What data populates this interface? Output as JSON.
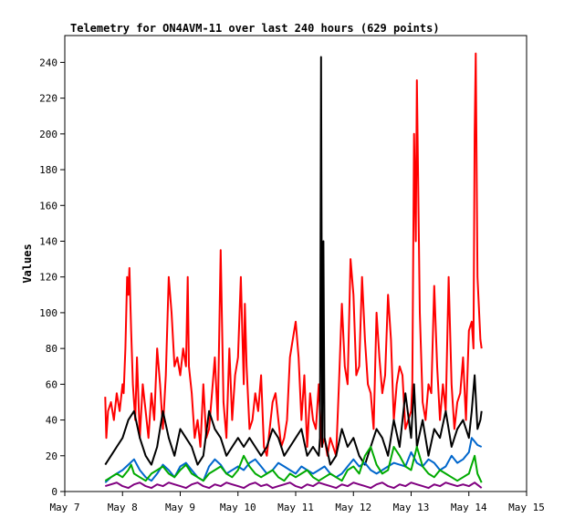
{
  "chart_data": {
    "type": "line",
    "title": "Telemetry for ON4AVM-11 over last 240 hours (629 points)",
    "xlabel": "",
    "ylabel": "Values",
    "x_unit": "day of May",
    "xlim": [
      7,
      15
    ],
    "ylim": [
      0,
      255
    ],
    "x_ticks": [
      {
        "x": 7,
        "label": "May 7"
      },
      {
        "x": 8,
        "label": "May 8"
      },
      {
        "x": 9,
        "label": "May 9"
      },
      {
        "x": 10,
        "label": "May 10"
      },
      {
        "x": 11,
        "label": "May 11"
      },
      {
        "x": 12,
        "label": "May 12"
      },
      {
        "x": 13,
        "label": "May 13"
      },
      {
        "x": 14,
        "label": "May 14"
      },
      {
        "x": 15,
        "label": "May 15"
      }
    ],
    "y_ticks": [
      0,
      20,
      40,
      60,
      80,
      100,
      120,
      140,
      160,
      180,
      200,
      220,
      240
    ],
    "grid": false,
    "legend": "none",
    "series": [
      {
        "color": "#ff0000",
        "x": [
          7.7,
          7.72,
          7.75,
          7.8,
          7.85,
          7.9,
          7.95,
          8.0,
          8.02,
          8.05,
          8.08,
          8.1,
          8.12,
          8.15,
          8.18,
          8.22,
          8.25,
          8.3,
          8.35,
          8.4,
          8.45,
          8.5,
          8.55,
          8.6,
          8.65,
          8.7,
          8.75,
          8.8,
          8.85,
          8.9,
          8.95,
          9.0,
          9.05,
          9.1,
          9.13,
          9.15,
          9.2,
          9.25,
          9.3,
          9.35,
          9.4,
          9.45,
          9.5,
          9.55,
          9.6,
          9.65,
          9.7,
          9.75,
          9.8,
          9.85,
          9.9,
          9.95,
          10.0,
          10.05,
          10.1,
          10.12,
          10.15,
          10.2,
          10.25,
          10.3,
          10.35,
          10.4,
          10.45,
          10.5,
          10.55,
          10.6,
          10.65,
          10.7,
          10.75,
          10.8,
          10.85,
          10.9,
          10.95,
          11.0,
          11.05,
          11.1,
          11.15,
          11.2,
          11.25,
          11.3,
          11.35,
          11.4,
          11.45,
          11.5,
          11.55,
          11.6,
          11.65,
          11.7,
          11.75,
          11.8,
          11.85,
          11.9,
          11.95,
          12.0,
          12.05,
          12.1,
          12.15,
          12.2,
          12.25,
          12.3,
          12.35,
          12.4,
          12.45,
          12.5,
          12.55,
          12.6,
          12.65,
          12.7,
          12.75,
          12.8,
          12.85,
          12.9,
          12.95,
          13.0,
          13.02,
          13.05,
          13.08,
          13.1,
          13.15,
          13.2,
          13.25,
          13.3,
          13.35,
          13.4,
          13.45,
          13.5,
          13.55,
          13.6,
          13.65,
          13.7,
          13.75,
          13.8,
          13.85,
          13.9,
          13.95,
          14.0,
          14.05,
          14.08,
          14.1,
          14.12,
          14.15,
          14.2,
          14.22
        ],
        "values": [
          53,
          30,
          45,
          50,
          40,
          55,
          45,
          60,
          55,
          80,
          120,
          110,
          125,
          90,
          60,
          40,
          75,
          30,
          60,
          45,
          30,
          55,
          40,
          80,
          60,
          35,
          65,
          120,
          100,
          70,
          75,
          65,
          80,
          70,
          120,
          70,
          55,
          30,
          40,
          25,
          60,
          30,
          35,
          55,
          75,
          40,
          135,
          50,
          30,
          80,
          40,
          65,
          75,
          120,
          60,
          105,
          70,
          35,
          40,
          55,
          45,
          65,
          25,
          20,
          35,
          50,
          55,
          40,
          25,
          30,
          40,
          75,
          85,
          95,
          75,
          40,
          65,
          25,
          55,
          40,
          35,
          60,
          25,
          30,
          20,
          30,
          25,
          20,
          60,
          105,
          70,
          60,
          130,
          110,
          65,
          70,
          120,
          85,
          60,
          55,
          35,
          100,
          75,
          55,
          65,
          110,
          85,
          40,
          60,
          70,
          65,
          35,
          40,
          45,
          60,
          200,
          140,
          230,
          100,
          50,
          40,
          60,
          55,
          115,
          70,
          40,
          60,
          45,
          120,
          60,
          35,
          50,
          55,
          75,
          40,
          90,
          95,
          80,
          200,
          245,
          120,
          85,
          80
        ]
      },
      {
        "color": "#000000",
        "x": [
          7.7,
          7.8,
          7.9,
          8.0,
          8.1,
          8.2,
          8.3,
          8.4,
          8.5,
          8.6,
          8.7,
          8.8,
          8.9,
          9.0,
          9.1,
          9.2,
          9.3,
          9.4,
          9.5,
          9.6,
          9.7,
          9.8,
          9.9,
          10.0,
          10.1,
          10.2,
          10.3,
          10.4,
          10.5,
          10.6,
          10.7,
          10.8,
          10.9,
          11.0,
          11.1,
          11.2,
          11.3,
          11.4,
          11.42,
          11.44,
          11.46,
          11.48,
          11.5,
          11.6,
          11.7,
          11.8,
          11.9,
          12.0,
          12.1,
          12.2,
          12.3,
          12.4,
          12.5,
          12.6,
          12.7,
          12.8,
          12.9,
          13.0,
          13.05,
          13.1,
          13.2,
          13.3,
          13.4,
          13.5,
          13.6,
          13.7,
          13.8,
          13.9,
          14.0,
          14.05,
          14.1,
          14.15,
          14.2,
          14.22
        ],
        "values": [
          15,
          20,
          25,
          30,
          40,
          45,
          30,
          20,
          15,
          25,
          45,
          30,
          20,
          35,
          30,
          25,
          15,
          20,
          45,
          35,
          30,
          20,
          25,
          30,
          25,
          30,
          25,
          20,
          25,
          35,
          30,
          20,
          25,
          30,
          35,
          20,
          25,
          20,
          30,
          243,
          25,
          140,
          30,
          15,
          20,
          35,
          25,
          30,
          20,
          15,
          25,
          35,
          30,
          20,
          40,
          25,
          55,
          30,
          60,
          25,
          40,
          20,
          35,
          30,
          45,
          25,
          35,
          40,
          30,
          45,
          65,
          35,
          40,
          45
        ]
      },
      {
        "color": "#0066cc",
        "x": [
          7.7,
          7.8,
          7.9,
          8.0,
          8.1,
          8.2,
          8.3,
          8.4,
          8.5,
          8.6,
          8.7,
          8.8,
          8.9,
          9.0,
          9.1,
          9.2,
          9.3,
          9.4,
          9.5,
          9.6,
          9.7,
          9.8,
          9.9,
          10.0,
          10.1,
          10.2,
          10.3,
          10.4,
          10.5,
          10.6,
          10.7,
          10.8,
          10.9,
          11.0,
          11.1,
          11.2,
          11.3,
          11.4,
          11.5,
          11.6,
          11.7,
          11.8,
          11.9,
          12.0,
          12.1,
          12.2,
          12.3,
          12.4,
          12.5,
          12.6,
          12.7,
          12.8,
          12.9,
          13.0,
          13.1,
          13.2,
          13.3,
          13.4,
          13.5,
          13.6,
          13.7,
          13.8,
          13.9,
          14.0,
          14.05,
          14.1,
          14.15,
          14.22
        ],
        "values": [
          5,
          8,
          10,
          12,
          15,
          18,
          12,
          8,
          6,
          10,
          15,
          12,
          8,
          14,
          16,
          12,
          8,
          6,
          14,
          18,
          15,
          10,
          12,
          14,
          12,
          16,
          18,
          14,
          10,
          12,
          16,
          14,
          12,
          10,
          14,
          12,
          10,
          12,
          14,
          10,
          8,
          10,
          14,
          18,
          14,
          16,
          12,
          10,
          12,
          14,
          16,
          15,
          14,
          22,
          16,
          14,
          18,
          16,
          12,
          14,
          20,
          16,
          18,
          22,
          30,
          28,
          26,
          25
        ]
      },
      {
        "color": "#00aa00",
        "x": [
          7.7,
          7.8,
          7.9,
          8.0,
          8.1,
          8.15,
          8.2,
          8.3,
          8.4,
          8.5,
          8.6,
          8.7,
          8.8,
          8.9,
          9.0,
          9.1,
          9.2,
          9.3,
          9.4,
          9.5,
          9.6,
          9.7,
          9.8,
          9.9,
          10.0,
          10.1,
          10.2,
          10.3,
          10.4,
          10.5,
          10.6,
          10.7,
          10.8,
          10.9,
          11.0,
          11.1,
          11.2,
          11.3,
          11.4,
          11.5,
          11.6,
          11.7,
          11.8,
          11.9,
          12.0,
          12.1,
          12.2,
          12.3,
          12.4,
          12.5,
          12.6,
          12.7,
          12.8,
          12.9,
          13.0,
          13.1,
          13.2,
          13.3,
          13.4,
          13.5,
          13.6,
          13.7,
          13.8,
          13.9,
          14.0,
          14.05,
          14.1,
          14.15,
          14.22
        ],
        "values": [
          6,
          8,
          10,
          8,
          12,
          15,
          10,
          8,
          6,
          10,
          12,
          14,
          10,
          8,
          12,
          15,
          10,
          8,
          6,
          10,
          12,
          14,
          10,
          8,
          12,
          20,
          14,
          10,
          8,
          10,
          12,
          8,
          6,
          10,
          8,
          10,
          12,
          8,
          6,
          8,
          10,
          8,
          6,
          12,
          14,
          10,
          20,
          25,
          15,
          10,
          12,
          25,
          20,
          14,
          12,
          25,
          14,
          10,
          8,
          12,
          10,
          8,
          6,
          8,
          10,
          15,
          20,
          10,
          5
        ]
      },
      {
        "color": "#800080",
        "x": [
          7.7,
          7.8,
          7.9,
          8.0,
          8.1,
          8.2,
          8.3,
          8.4,
          8.5,
          8.6,
          8.7,
          8.8,
          8.9,
          9.0,
          9.1,
          9.2,
          9.3,
          9.4,
          9.5,
          9.6,
          9.7,
          9.8,
          9.9,
          10.0,
          10.1,
          10.2,
          10.3,
          10.4,
          10.5,
          10.6,
          10.7,
          10.8,
          10.9,
          11.0,
          11.1,
          11.2,
          11.3,
          11.4,
          11.5,
          11.6,
          11.7,
          11.8,
          11.9,
          12.0,
          12.1,
          12.2,
          12.3,
          12.4,
          12.5,
          12.6,
          12.7,
          12.8,
          12.9,
          13.0,
          13.1,
          13.2,
          13.3,
          13.4,
          13.5,
          13.6,
          13.7,
          13.8,
          13.9,
          14.0,
          14.1,
          14.22
        ],
        "values": [
          3,
          4,
          5,
          3,
          2,
          4,
          5,
          3,
          2,
          4,
          3,
          5,
          4,
          3,
          2,
          4,
          5,
          3,
          2,
          4,
          3,
          5,
          4,
          3,
          2,
          4,
          5,
          3,
          4,
          2,
          3,
          4,
          5,
          3,
          2,
          4,
          3,
          5,
          4,
          3,
          2,
          4,
          3,
          5,
          4,
          3,
          2,
          4,
          5,
          3,
          2,
          4,
          3,
          5,
          4,
          3,
          2,
          4,
          3,
          5,
          4,
          3,
          4,
          3,
          5,
          2
        ]
      }
    ]
  }
}
